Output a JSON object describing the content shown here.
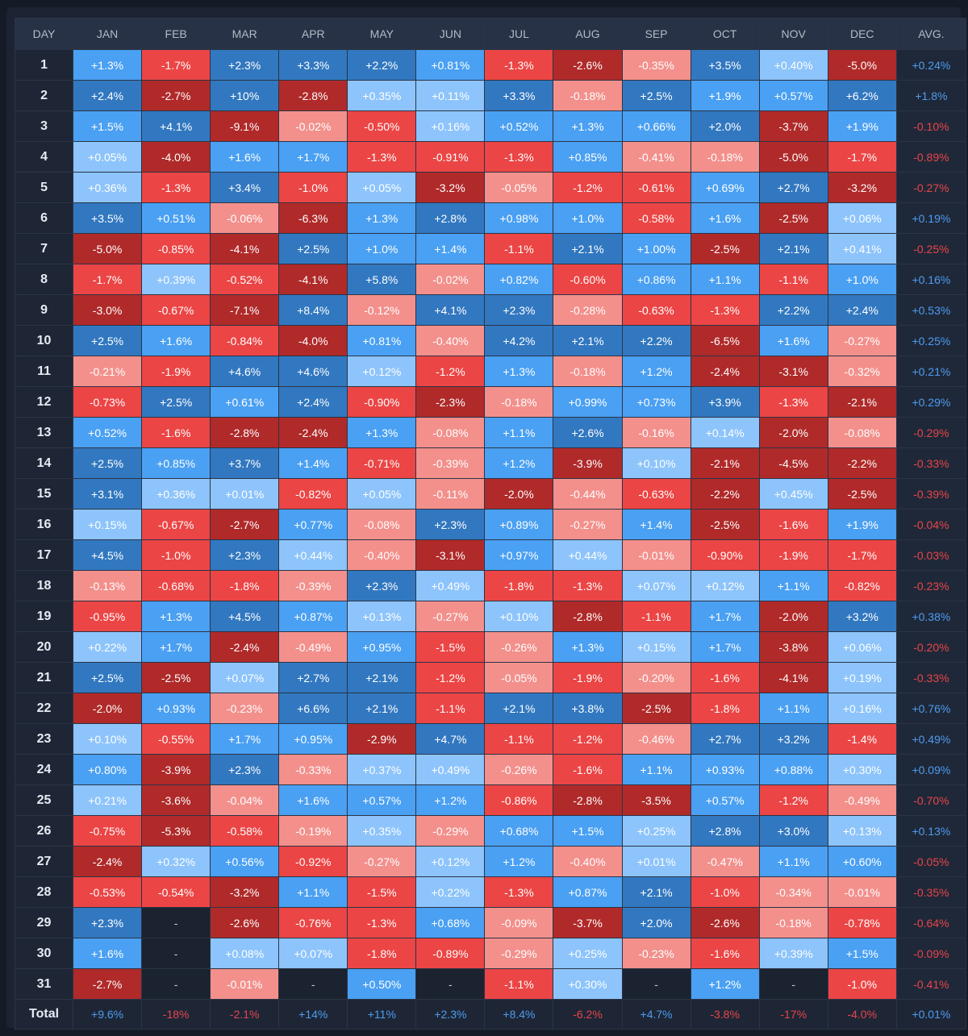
{
  "chart_data": {
    "type": "heatmap",
    "headers": [
      "DAY",
      "JAN",
      "FEB",
      "MAR",
      "APR",
      "MAY",
      "JUN",
      "JUL",
      "AUG",
      "SEP",
      "OCT",
      "NOV",
      "DEC",
      "AVG."
    ],
    "rows": [
      {
        "day": "1",
        "cells": [
          "+1.3%",
          "-1.7%",
          "+2.3%",
          "+3.3%",
          "+2.2%",
          "+0.81%",
          "-1.3%",
          "-2.6%",
          "-0.35%",
          "+3.5%",
          "+0.40%",
          "-5.0%"
        ],
        "avg": "+0.24%"
      },
      {
        "day": "2",
        "cells": [
          "+2.4%",
          "-2.7%",
          "+10%",
          "-2.8%",
          "+0.35%",
          "+0.11%",
          "+3.3%",
          "-0.18%",
          "+2.5%",
          "+1.9%",
          "+0.57%",
          "+6.2%"
        ],
        "avg": "+1.8%"
      },
      {
        "day": "3",
        "cells": [
          "+1.5%",
          "+4.1%",
          "-9.1%",
          "-0.02%",
          "-0.50%",
          "+0.16%",
          "+0.52%",
          "+1.3%",
          "+0.66%",
          "+2.0%",
          "-3.7%",
          "+1.9%"
        ],
        "avg": "-0.10%"
      },
      {
        "day": "4",
        "cells": [
          "+0.05%",
          "-4.0%",
          "+1.6%",
          "+1.7%",
          "-1.3%",
          "-0.91%",
          "-1.3%",
          "+0.85%",
          "-0.41%",
          "-0.18%",
          "-5.0%",
          "-1.7%"
        ],
        "avg": "-0.89%"
      },
      {
        "day": "5",
        "cells": [
          "+0.36%",
          "-1.3%",
          "+3.4%",
          "-1.0%",
          "+0.05%",
          "-3.2%",
          "-0.05%",
          "-1.2%",
          "-0.61%",
          "+0.69%",
          "+2.7%",
          "-3.2%"
        ],
        "avg": "-0.27%"
      },
      {
        "day": "6",
        "cells": [
          "+3.5%",
          "+0.51%",
          "-0.06%",
          "-6.3%",
          "+1.3%",
          "+2.8%",
          "+0.98%",
          "+1.0%",
          "-0.58%",
          "+1.6%",
          "-2.5%",
          "+0.06%"
        ],
        "avg": "+0.19%"
      },
      {
        "day": "7",
        "cells": [
          "-5.0%",
          "-0.85%",
          "-4.1%",
          "+2.5%",
          "+1.0%",
          "+1.4%",
          "-1.1%",
          "+2.1%",
          "+1.00%",
          "-2.5%",
          "+2.1%",
          "+0.41%"
        ],
        "avg": "-0.25%"
      },
      {
        "day": "8",
        "cells": [
          "-1.7%",
          "+0.39%",
          "-0.52%",
          "-4.1%",
          "+5.8%",
          "-0.02%",
          "+0.82%",
          "-0.60%",
          "+0.86%",
          "+1.1%",
          "-1.1%",
          "+1.0%"
        ],
        "avg": "+0.16%"
      },
      {
        "day": "9",
        "cells": [
          "-3.0%",
          "-0.67%",
          "-7.1%",
          "+8.4%",
          "-0.12%",
          "+4.1%",
          "+2.3%",
          "-0.28%",
          "-0.63%",
          "-1.3%",
          "+2.2%",
          "+2.4%"
        ],
        "avg": "+0.53%"
      },
      {
        "day": "10",
        "cells": [
          "+2.5%",
          "+1.6%",
          "-0.84%",
          "-4.0%",
          "+0.81%",
          "-0.40%",
          "+4.2%",
          "+2.1%",
          "+2.2%",
          "-6.5%",
          "+1.6%",
          "-0.27%"
        ],
        "avg": "+0.25%"
      },
      {
        "day": "11",
        "cells": [
          "-0.21%",
          "-1.9%",
          "+4.6%",
          "+4.6%",
          "+0.12%",
          "-1.2%",
          "+1.3%",
          "-0.18%",
          "+1.2%",
          "-2.4%",
          "-3.1%",
          "-0.32%"
        ],
        "avg": "+0.21%"
      },
      {
        "day": "12",
        "cells": [
          "-0.73%",
          "+2.5%",
          "+0.61%",
          "+2.4%",
          "-0.90%",
          "-2.3%",
          "-0.18%",
          "+0.99%",
          "+0.73%",
          "+3.9%",
          "-1.3%",
          "-2.1%"
        ],
        "avg": "+0.29%"
      },
      {
        "day": "13",
        "cells": [
          "+0.52%",
          "-1.6%",
          "-2.8%",
          "-2.4%",
          "+1.3%",
          "-0.08%",
          "+1.1%",
          "+2.6%",
          "-0.16%",
          "+0.14%",
          "-2.0%",
          "-0.08%"
        ],
        "avg": "-0.29%"
      },
      {
        "day": "14",
        "cells": [
          "+2.5%",
          "+0.85%",
          "+3.7%",
          "+1.4%",
          "-0.71%",
          "-0.39%",
          "+1.2%",
          "-3.9%",
          "+0.10%",
          "-2.1%",
          "-4.5%",
          "-2.2%"
        ],
        "avg": "-0.33%"
      },
      {
        "day": "15",
        "cells": [
          "+3.1%",
          "+0.36%",
          "+0.01%",
          "-0.82%",
          "+0.05%",
          "-0.11%",
          "-2.0%",
          "-0.44%",
          "-0.63%",
          "-2.2%",
          "+0.45%",
          "-2.5%"
        ],
        "avg": "-0.39%"
      },
      {
        "day": "16",
        "cells": [
          "+0.15%",
          "-0.67%",
          "-2.7%",
          "+0.77%",
          "-0.08%",
          "+2.3%",
          "+0.89%",
          "-0.27%",
          "+1.4%",
          "-2.5%",
          "-1.6%",
          "+1.9%"
        ],
        "avg": "-0.04%"
      },
      {
        "day": "17",
        "cells": [
          "+4.5%",
          "-1.0%",
          "+2.3%",
          "+0.44%",
          "-0.40%",
          "-3.1%",
          "+0.97%",
          "+0.44%",
          "-0.01%",
          "-0.90%",
          "-1.9%",
          "-1.7%"
        ],
        "avg": "-0.03%"
      },
      {
        "day": "18",
        "cells": [
          "-0.13%",
          "-0.68%",
          "-1.8%",
          "-0.39%",
          "+2.3%",
          "+0.49%",
          "-1.8%",
          "-1.3%",
          "+0.07%",
          "+0.12%",
          "+1.1%",
          "-0.82%"
        ],
        "avg": "-0.23%"
      },
      {
        "day": "19",
        "cells": [
          "-0.95%",
          "+1.3%",
          "+4.5%",
          "+0.87%",
          "+0.13%",
          "-0.27%",
          "+0.10%",
          "-2.8%",
          "-1.1%",
          "+1.7%",
          "-2.0%",
          "+3.2%"
        ],
        "avg": "+0.38%"
      },
      {
        "day": "20",
        "cells": [
          "+0.22%",
          "+1.7%",
          "-2.4%",
          "-0.49%",
          "+0.95%",
          "-1.5%",
          "-0.26%",
          "+1.3%",
          "+0.15%",
          "+1.7%",
          "-3.8%",
          "+0.06%"
        ],
        "avg": "-0.20%"
      },
      {
        "day": "21",
        "cells": [
          "+2.5%",
          "-2.5%",
          "+0.07%",
          "+2.7%",
          "+2.1%",
          "-1.2%",
          "-0.05%",
          "-1.9%",
          "-0.20%",
          "-1.6%",
          "-4.1%",
          "+0.19%"
        ],
        "avg": "-0.33%"
      },
      {
        "day": "22",
        "cells": [
          "-2.0%",
          "+0.93%",
          "-0.23%",
          "+6.6%",
          "+2.1%",
          "-1.1%",
          "+2.1%",
          "+3.8%",
          "-2.5%",
          "-1.8%",
          "+1.1%",
          "+0.16%"
        ],
        "avg": "+0.76%"
      },
      {
        "day": "23",
        "cells": [
          "+0.10%",
          "-0.55%",
          "+1.7%",
          "+0.95%",
          "-2.9%",
          "+4.7%",
          "-1.1%",
          "-1.2%",
          "-0.46%",
          "+2.7%",
          "+3.2%",
          "-1.4%"
        ],
        "avg": "+0.49%"
      },
      {
        "day": "24",
        "cells": [
          "+0.80%",
          "-3.9%",
          "+2.3%",
          "-0.33%",
          "+0.37%",
          "+0.49%",
          "-0.26%",
          "-1.6%",
          "+1.1%",
          "+0.93%",
          "+0.88%",
          "+0.30%"
        ],
        "avg": "+0.09%"
      },
      {
        "day": "25",
        "cells": [
          "+0.21%",
          "-3.6%",
          "-0.04%",
          "+1.6%",
          "+0.57%",
          "+1.2%",
          "-0.86%",
          "-2.8%",
          "-3.5%",
          "+0.57%",
          "-1.2%",
          "-0.49%"
        ],
        "avg": "-0.70%"
      },
      {
        "day": "26",
        "cells": [
          "-0.75%",
          "-5.3%",
          "-0.58%",
          "-0.19%",
          "+0.35%",
          "-0.29%",
          "+0.68%",
          "+1.5%",
          "+0.25%",
          "+2.8%",
          "+3.0%",
          "+0.13%"
        ],
        "avg": "+0.13%"
      },
      {
        "day": "27",
        "cells": [
          "-2.4%",
          "+0.32%",
          "+0.56%",
          "-0.92%",
          "-0.27%",
          "+0.12%",
          "+1.2%",
          "-0.40%",
          "+0.01%",
          "-0.47%",
          "+1.1%",
          "+0.60%"
        ],
        "avg": "-0.05%"
      },
      {
        "day": "28",
        "cells": [
          "-0.53%",
          "-0.54%",
          "-3.2%",
          "+1.1%",
          "-1.5%",
          "+0.22%",
          "-1.3%",
          "+0.87%",
          "+2.1%",
          "-1.0%",
          "-0.34%",
          "-0.01%"
        ],
        "avg": "-0.35%"
      },
      {
        "day": "29",
        "cells": [
          "+2.3%",
          "-",
          "-2.6%",
          "-0.76%",
          "-1.3%",
          "+0.68%",
          "-0.09%",
          "-3.7%",
          "+2.0%",
          "-2.6%",
          "-0.18%",
          "-0.78%"
        ],
        "avg": "-0.64%"
      },
      {
        "day": "30",
        "cells": [
          "+1.6%",
          "-",
          "+0.08%",
          "+0.07%",
          "-1.8%",
          "-0.89%",
          "-0.29%",
          "+0.25%",
          "-0.23%",
          "-1.6%",
          "+0.39%",
          "+1.5%"
        ],
        "avg": "-0.09%"
      },
      {
        "day": "31",
        "cells": [
          "-2.7%",
          "-",
          "-0.01%",
          "-",
          "+0.50%",
          "-",
          "-1.1%",
          "+0.30%",
          "-",
          "+1.2%",
          "-",
          "-1.0%"
        ],
        "avg": "-0.41%"
      }
    ],
    "total": {
      "label": "Total",
      "cells": [
        "+9.6%",
        "-18%",
        "-2.1%",
        "+14%",
        "+11%",
        "+2.3%",
        "+8.4%",
        "-6.2%",
        "+4.7%",
        "-3.8%",
        "-17%",
        "-4.0%"
      ],
      "avg": "+0.01%"
    },
    "colors": {
      "positive_light": "#8dc4fb",
      "positive_mid": "#4aa0f2",
      "positive_dark": "#3278c0",
      "negative_light": "#f3908c",
      "negative_mid": "#eb4545",
      "negative_dark": "#b02a2a",
      "positive_text": "#4d9cf0",
      "negative_text": "#e8454a"
    }
  }
}
